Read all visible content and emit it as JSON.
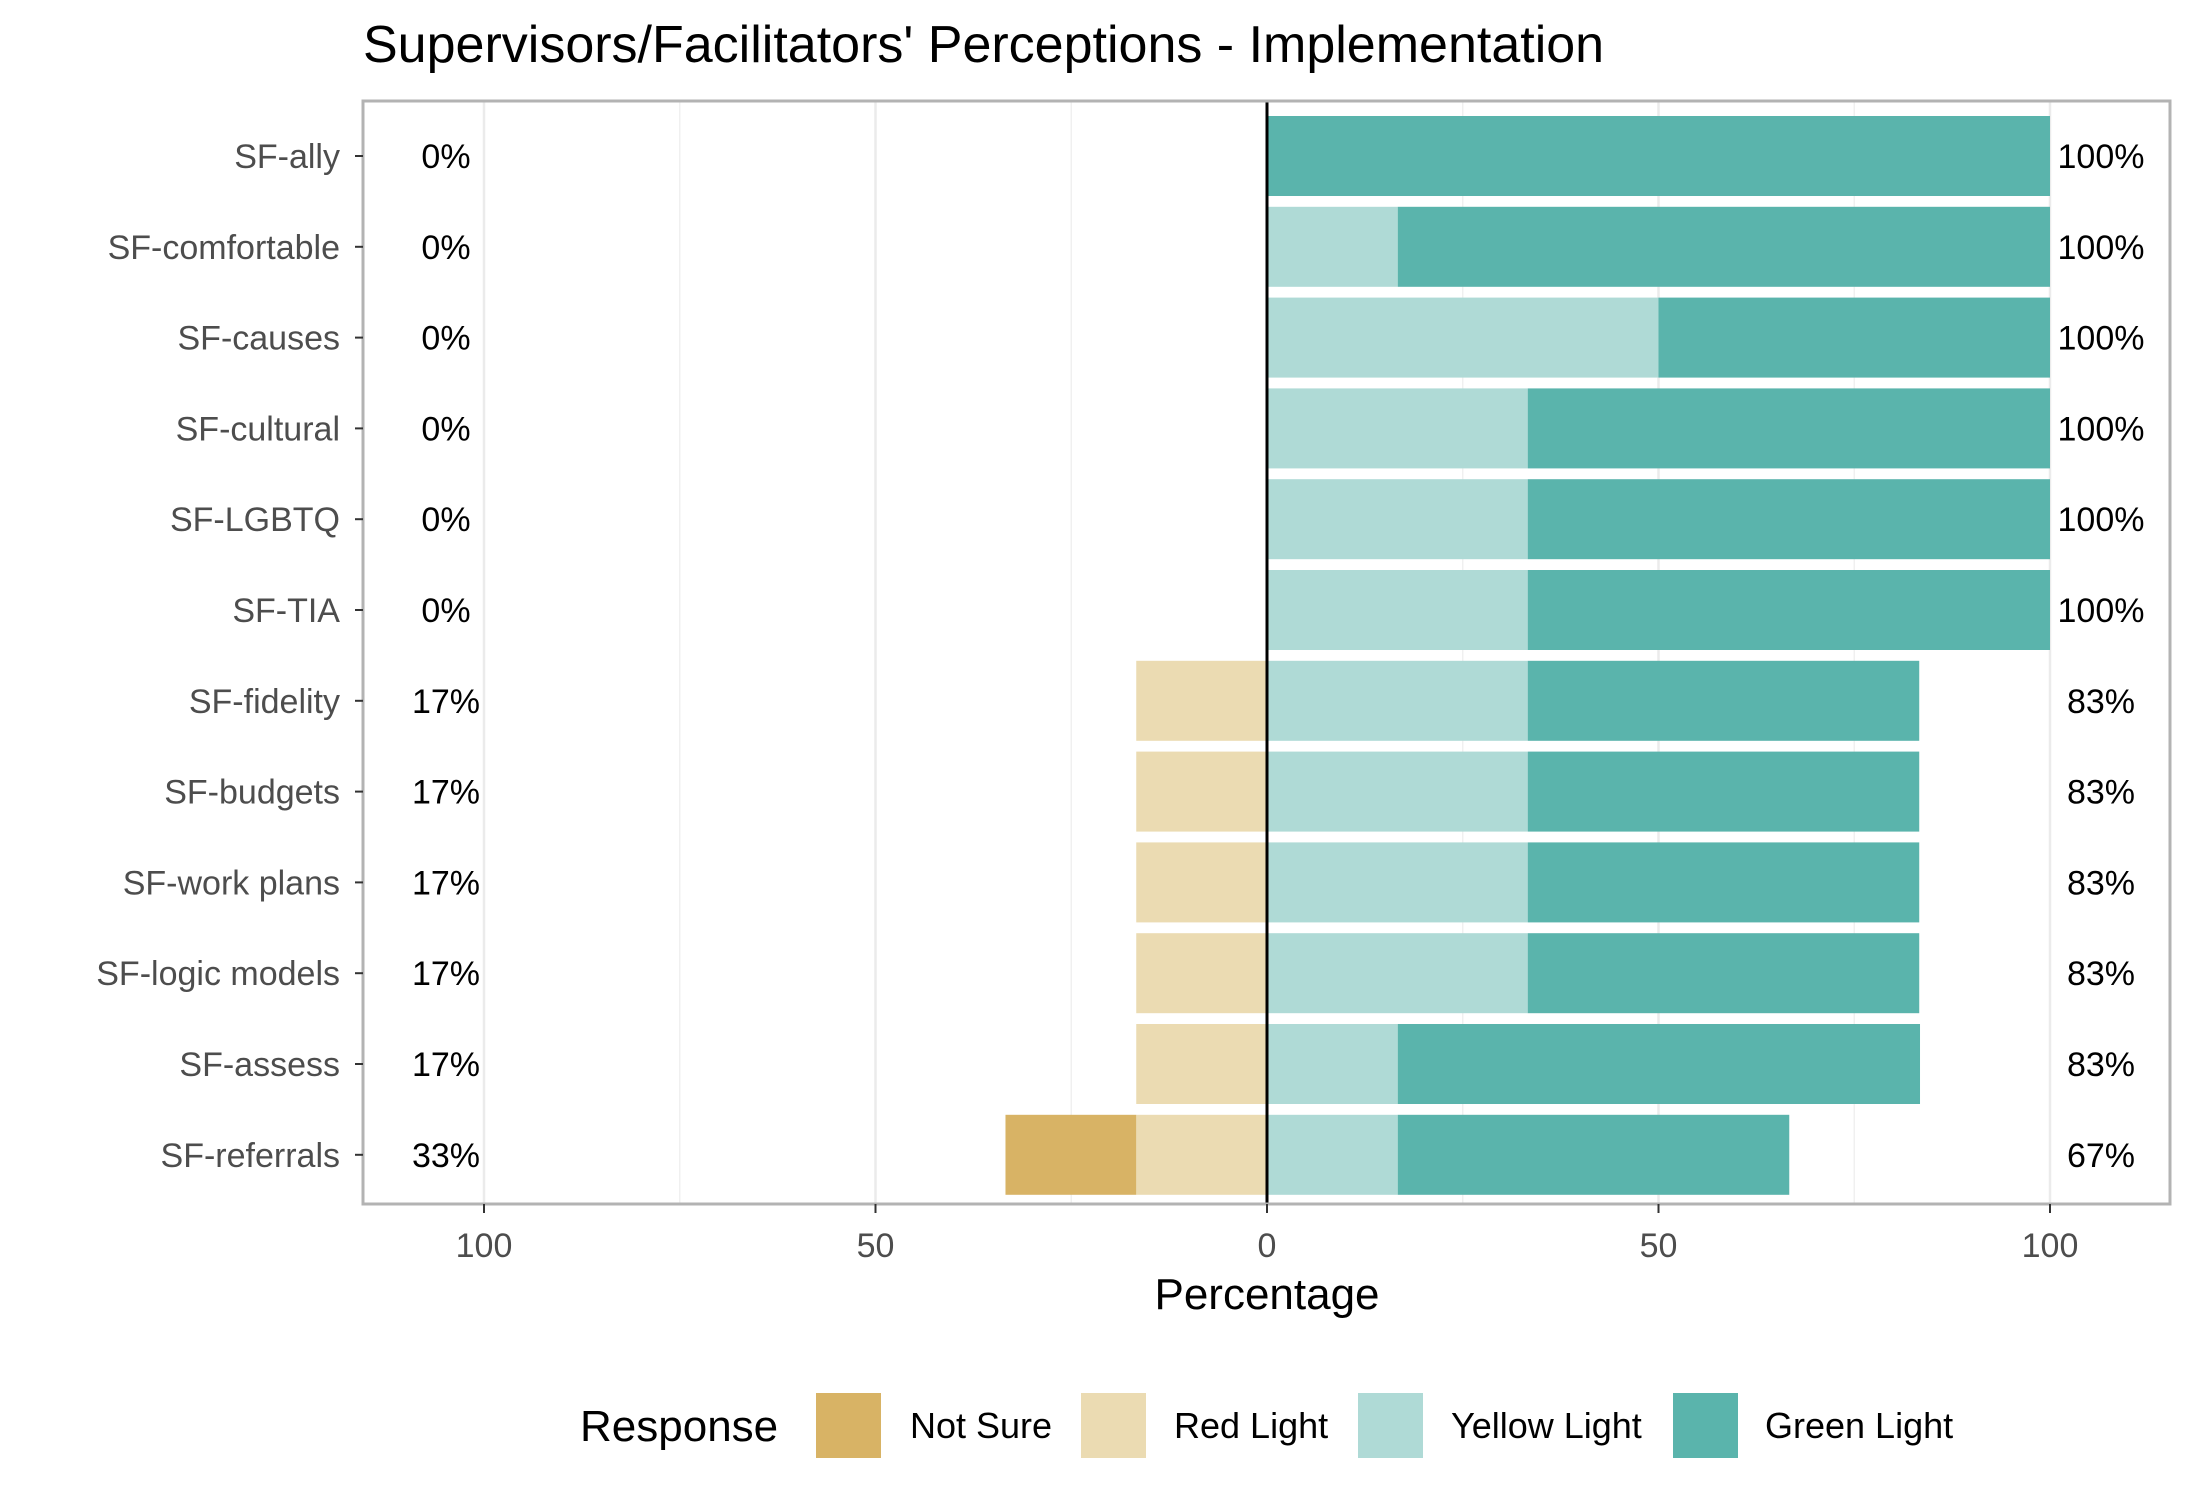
{
  "chart_data": {
    "type": "bar",
    "orientation": "horizontal",
    "stacking": "diverging",
    "title": "Supervisors/Facilitators' Perceptions - Implementation",
    "xlabel": "Percentage",
    "ylabel": "",
    "xlim": [
      -100,
      100
    ],
    "x_ticks": [
      -100,
      -50,
      0,
      50,
      100
    ],
    "x_tick_labels": [
      "100",
      "50",
      "0",
      "50",
      "100"
    ],
    "grid": true,
    "legend_position": "bottom",
    "legend_title": "Response",
    "categories": [
      "SF-ally",
      "SF-comfortable",
      "SF-causes",
      "SF-cultural",
      "SF-LGBTQ",
      "SF-TIA",
      "SF-fidelity",
      "SF-budgets",
      "SF-work plans",
      "SF-logic models",
      "SF-assess",
      "SF-referrals"
    ],
    "series": [
      {
        "name": "Not Sure",
        "color": "#d8b365",
        "side": "negative",
        "values": [
          0,
          0,
          0,
          0,
          0,
          0,
          0,
          0,
          0,
          0,
          0,
          16.7
        ]
      },
      {
        "name": "Red Light",
        "color": "#ebdbb2",
        "side": "negative",
        "values": [
          0,
          0,
          0,
          0,
          0,
          0,
          16.7,
          16.7,
          16.7,
          16.7,
          16.7,
          16.7
        ]
      },
      {
        "name": "Yellow Light",
        "color": "#afdad6",
        "side": "positive",
        "values": [
          0,
          16.7,
          50,
          33.3,
          33.3,
          33.3,
          33.3,
          33.3,
          33.3,
          33.3,
          16.7,
          16.7
        ]
      },
      {
        "name": "Green Light",
        "color": "#5ab4ac",
        "side": "positive",
        "values": [
          100,
          83.3,
          50,
          66.7,
          66.7,
          66.7,
          50,
          50,
          50,
          50,
          66.7,
          50
        ]
      }
    ],
    "left_labels": [
      "0%",
      "0%",
      "0%",
      "0%",
      "0%",
      "0%",
      "17%",
      "17%",
      "17%",
      "17%",
      "17%",
      "33%"
    ],
    "right_labels": [
      "100%",
      "100%",
      "100%",
      "100%",
      "100%",
      "100%",
      "83%",
      "83%",
      "83%",
      "83%",
      "83%",
      "67%"
    ]
  }
}
